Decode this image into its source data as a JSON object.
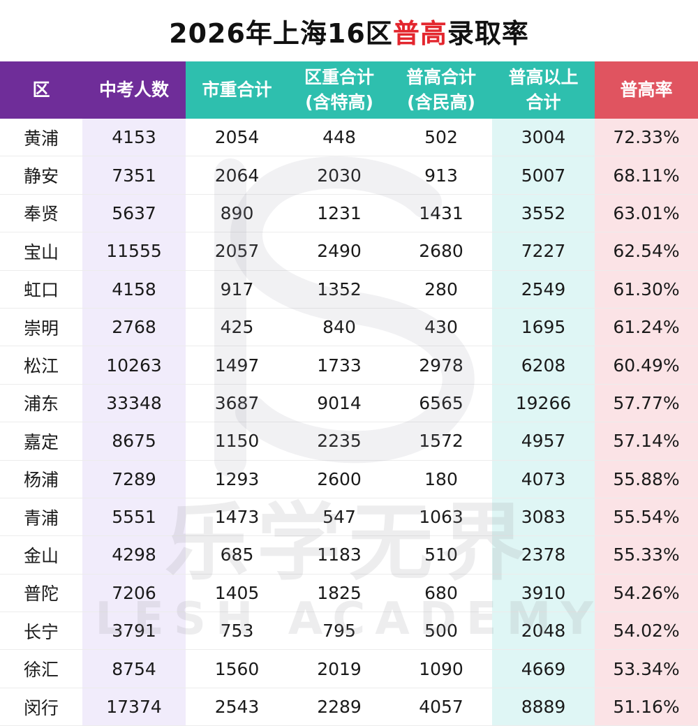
{
  "title": {
    "prefix": "2026年上海16区",
    "highlight": "普高",
    "suffix": "录取率"
  },
  "headers": [
    {
      "line1": "区",
      "line2": ""
    },
    {
      "line1": "中考人数",
      "line2": ""
    },
    {
      "line1": "市重合计",
      "line2": ""
    },
    {
      "line1": "区重合计",
      "line2": "(含特高)"
    },
    {
      "line1": "普高合计",
      "line2": "(含民高)"
    },
    {
      "line1": "普高以上",
      "line2": "合计"
    },
    {
      "line1": "普高率",
      "line2": ""
    }
  ],
  "rows": [
    {
      "district": "黄浦",
      "exam": "4153",
      "city": "2054",
      "dist": "448",
      "gen": "502",
      "total": "3004",
      "rate": "72.33%"
    },
    {
      "district": "静安",
      "exam": "7351",
      "city": "2064",
      "dist": "2030",
      "gen": "913",
      "total": "5007",
      "rate": "68.11%"
    },
    {
      "district": "奉贤",
      "exam": "5637",
      "city": "890",
      "dist": "1231",
      "gen": "1431",
      "total": "3552",
      "rate": "63.01%"
    },
    {
      "district": "宝山",
      "exam": "11555",
      "city": "2057",
      "dist": "2490",
      "gen": "2680",
      "total": "7227",
      "rate": "62.54%"
    },
    {
      "district": "虹口",
      "exam": "4158",
      "city": "917",
      "dist": "1352",
      "gen": "280",
      "total": "2549",
      "rate": "61.30%"
    },
    {
      "district": "崇明",
      "exam": "2768",
      "city": "425",
      "dist": "840",
      "gen": "430",
      "total": "1695",
      "rate": "61.24%"
    },
    {
      "district": "松江",
      "exam": "10263",
      "city": "1497",
      "dist": "1733",
      "gen": "2978",
      "total": "6208",
      "rate": "60.49%"
    },
    {
      "district": "浦东",
      "exam": "33348",
      "city": "3687",
      "dist": "9014",
      "gen": "6565",
      "total": "19266",
      "rate": "57.77%"
    },
    {
      "district": "嘉定",
      "exam": "8675",
      "city": "1150",
      "dist": "2235",
      "gen": "1572",
      "total": "4957",
      "rate": "57.14%"
    },
    {
      "district": "杨浦",
      "exam": "7289",
      "city": "1293",
      "dist": "2600",
      "gen": "180",
      "total": "4073",
      "rate": "55.88%"
    },
    {
      "district": "青浦",
      "exam": "5551",
      "city": "1473",
      "dist": "547",
      "gen": "1063",
      "total": "3083",
      "rate": "55.54%"
    },
    {
      "district": "金山",
      "exam": "4298",
      "city": "685",
      "dist": "1183",
      "gen": "510",
      "total": "2378",
      "rate": "55.33%"
    },
    {
      "district": "普陀",
      "exam": "7206",
      "city": "1405",
      "dist": "1825",
      "gen": "680",
      "total": "3910",
      "rate": "54.26%"
    },
    {
      "district": "长宁",
      "exam": "3791",
      "city": "753",
      "dist": "795",
      "gen": "500",
      "total": "2048",
      "rate": "54.02%"
    },
    {
      "district": "徐汇",
      "exam": "8754",
      "city": "1560",
      "dist": "2019",
      "gen": "1090",
      "total": "4669",
      "rate": "53.34%"
    },
    {
      "district": "闵行",
      "exam": "17374",
      "city": "2543",
      "dist": "2289",
      "gen": "4057",
      "total": "8889",
      "rate": "51.16%"
    }
  ],
  "watermark": {
    "text_cn": "乐学无界",
    "text_en": "LESH ACADEMY"
  },
  "colors": {
    "purple": "#6f2d99",
    "teal": "#2ebfae",
    "red": "#e05460",
    "title_highlight": "#e3262e"
  }
}
